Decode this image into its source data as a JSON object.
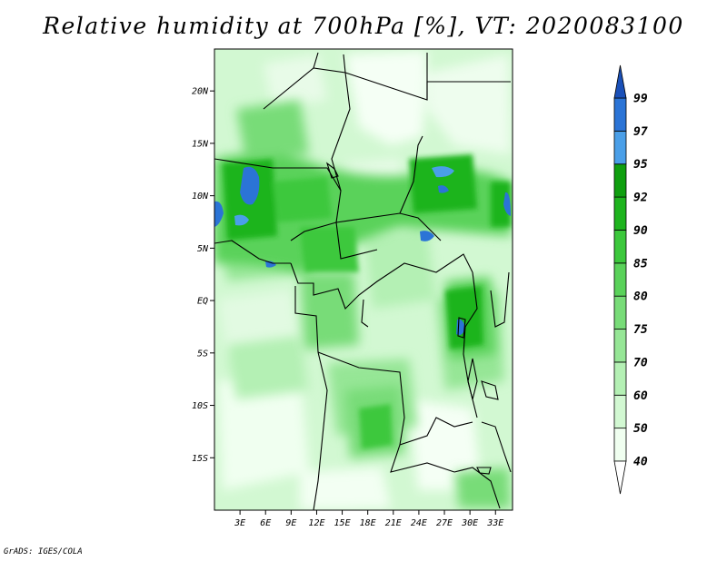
{
  "title": "Relative humidity at 700hPa [%], VT: 2020083100",
  "credit": "GrADS: IGES/COLA",
  "map": {
    "lat_labels": [
      "20N",
      "15N",
      "10N",
      "5N",
      "EQ",
      "5S",
      "10S",
      "15S"
    ],
    "lon_labels": [
      "3E",
      "6E",
      "9E",
      "12E",
      "15E",
      "18E",
      "21E",
      "24E",
      "27E",
      "30E",
      "33E"
    ],
    "lat_range": [
      -20,
      24
    ],
    "lon_range": [
      0,
      35
    ]
  },
  "colorbar": {
    "levels": [
      {
        "label": "40",
        "color": "#f0fff0"
      },
      {
        "label": "50",
        "color": "#d2f8d2"
      },
      {
        "label": "60",
        "color": "#b4f0b4"
      },
      {
        "label": "70",
        "color": "#96e696"
      },
      {
        "label": "75",
        "color": "#78dc78"
      },
      {
        "label": "80",
        "color": "#5ad25a"
      },
      {
        "label": "85",
        "color": "#3cc83c"
      },
      {
        "label": "90",
        "color": "#1eb41e"
      },
      {
        "label": "92",
        "color": "#0f9f0f"
      },
      {
        "label": "95",
        "color": "#4a9fe8"
      },
      {
        "label": "97",
        "color": "#2b74d6"
      },
      {
        "label": "99",
        "color": "#1a50b8"
      }
    ],
    "under_color": "#ffffff",
    "over_color": "#1a50b8"
  },
  "colors": {
    "pale": "#f0fff0",
    "light": "#b4f0b4",
    "mid": "#5ad25a",
    "dark": "#1eb41e",
    "blue": "#2b74d6"
  }
}
